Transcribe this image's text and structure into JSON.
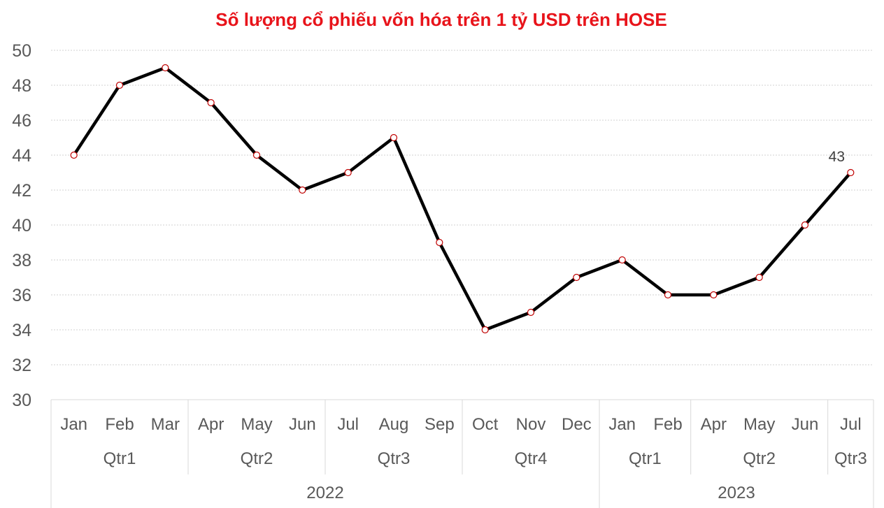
{
  "chart_data": {
    "type": "line",
    "title": "Số lượng cổ phiếu vốn hóa trên 1 tỷ USD trên HOSE",
    "xlabel": "",
    "ylabel": "",
    "ylim": [
      30,
      50
    ],
    "yticks": [
      30,
      32,
      34,
      36,
      38,
      40,
      42,
      44,
      46,
      48,
      50
    ],
    "grid": true,
    "categories": [
      "Jan",
      "Feb",
      "Mar",
      "Apr",
      "May",
      "Jun",
      "Jul",
      "Aug",
      "Sep",
      "Oct",
      "Nov",
      "Dec",
      "Jan",
      "Feb",
      "Apr",
      "May",
      "Jun",
      "Jul"
    ],
    "quarters": [
      {
        "label": "Qtr1",
        "span": 3
      },
      {
        "label": "Qtr2",
        "span": 3
      },
      {
        "label": "Qtr3",
        "span": 3
      },
      {
        "label": "Qtr4",
        "span": 3
      },
      {
        "label": "Qtr1",
        "span": 2
      },
      {
        "label": "Qtr2",
        "span": 3
      },
      {
        "label": "Qtr3",
        "span": 1
      }
    ],
    "years": [
      {
        "label": "2022",
        "span": 12
      },
      {
        "label": "2023",
        "span": 6
      }
    ],
    "series": [
      {
        "values": [
          44,
          48,
          49,
          47,
          44,
          42,
          43,
          45,
          39,
          34,
          35,
          37,
          38,
          36,
          36,
          37,
          40,
          43
        ],
        "color": "#000000",
        "marker_stroke": "#c00000"
      }
    ],
    "data_labels": [
      {
        "index": 17,
        "text": "43"
      }
    ]
  }
}
